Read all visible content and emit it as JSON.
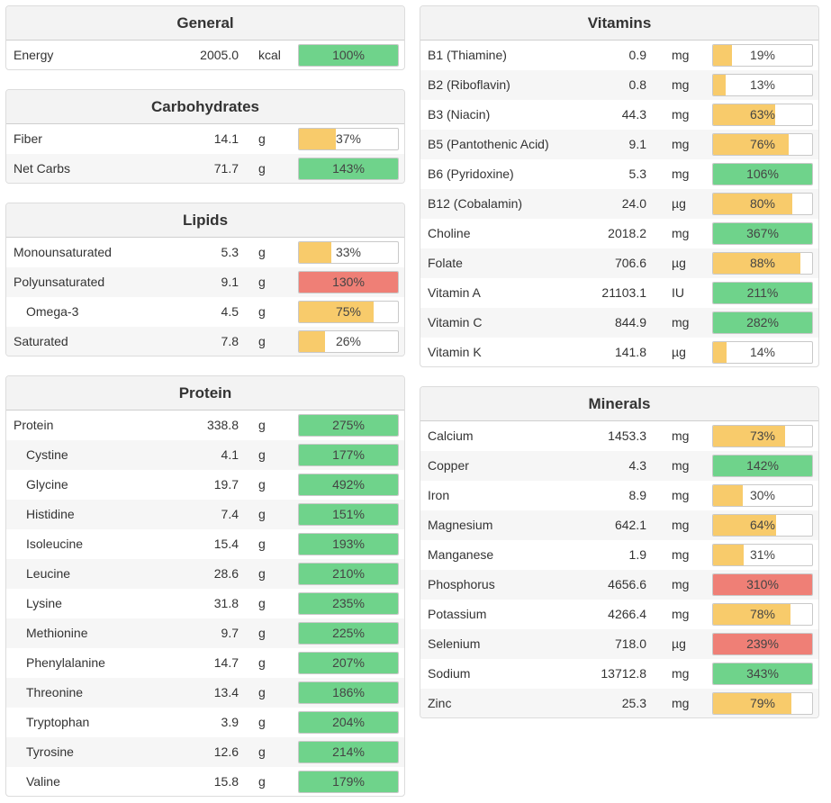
{
  "colors": {
    "green": "#6fd38b",
    "yellow": "#f8cb6b",
    "red": "#ef7f76"
  },
  "sections": {
    "general": {
      "title": "General",
      "rows": [
        {
          "name": "Energy",
          "amount": "2005.0",
          "unit": "kcal",
          "pct": "100%",
          "fill": 1.0,
          "color": "green"
        }
      ]
    },
    "carbohydrates": {
      "title": "Carbohydrates",
      "rows": [
        {
          "name": "Fiber",
          "amount": "14.1",
          "unit": "g",
          "pct": "37%",
          "fill": 0.37,
          "color": "yellow"
        },
        {
          "name": "Net Carbs",
          "amount": "71.7",
          "unit": "g",
          "pct": "143%",
          "fill": 1.0,
          "color": "green"
        }
      ]
    },
    "lipids": {
      "title": "Lipids",
      "rows": [
        {
          "name": "Monounsaturated",
          "amount": "5.3",
          "unit": "g",
          "pct": "33%",
          "fill": 0.33,
          "color": "yellow"
        },
        {
          "name": "Polyunsaturated",
          "amount": "9.1",
          "unit": "g",
          "pct": "130%",
          "fill": 1.0,
          "color": "red"
        },
        {
          "name": "Omega-3",
          "amount": "4.5",
          "unit": "g",
          "pct": "75%",
          "fill": 0.75,
          "color": "yellow",
          "indent": true
        },
        {
          "name": "Saturated",
          "amount": "7.8",
          "unit": "g",
          "pct": "26%",
          "fill": 0.26,
          "color": "yellow"
        }
      ]
    },
    "protein": {
      "title": "Protein",
      "rows": [
        {
          "name": "Protein",
          "amount": "338.8",
          "unit": "g",
          "pct": "275%",
          "fill": 1.0,
          "color": "green"
        },
        {
          "name": "Cystine",
          "amount": "4.1",
          "unit": "g",
          "pct": "177%",
          "fill": 1.0,
          "color": "green",
          "indent": true
        },
        {
          "name": "Glycine",
          "amount": "19.7",
          "unit": "g",
          "pct": "492%",
          "fill": 1.0,
          "color": "green",
          "indent": true
        },
        {
          "name": "Histidine",
          "amount": "7.4",
          "unit": "g",
          "pct": "151%",
          "fill": 1.0,
          "color": "green",
          "indent": true
        },
        {
          "name": "Isoleucine",
          "amount": "15.4",
          "unit": "g",
          "pct": "193%",
          "fill": 1.0,
          "color": "green",
          "indent": true
        },
        {
          "name": "Leucine",
          "amount": "28.6",
          "unit": "g",
          "pct": "210%",
          "fill": 1.0,
          "color": "green",
          "indent": true
        },
        {
          "name": "Lysine",
          "amount": "31.8",
          "unit": "g",
          "pct": "235%",
          "fill": 1.0,
          "color": "green",
          "indent": true
        },
        {
          "name": "Methionine",
          "amount": "9.7",
          "unit": "g",
          "pct": "225%",
          "fill": 1.0,
          "color": "green",
          "indent": true
        },
        {
          "name": "Phenylalanine",
          "amount": "14.7",
          "unit": "g",
          "pct": "207%",
          "fill": 1.0,
          "color": "green",
          "indent": true
        },
        {
          "name": "Threonine",
          "amount": "13.4",
          "unit": "g",
          "pct": "186%",
          "fill": 1.0,
          "color": "green",
          "indent": true
        },
        {
          "name": "Tryptophan",
          "amount": "3.9",
          "unit": "g",
          "pct": "204%",
          "fill": 1.0,
          "color": "green",
          "indent": true
        },
        {
          "name": "Tyrosine",
          "amount": "12.6",
          "unit": "g",
          "pct": "214%",
          "fill": 1.0,
          "color": "green",
          "indent": true
        },
        {
          "name": "Valine",
          "amount": "15.8",
          "unit": "g",
          "pct": "179%",
          "fill": 1.0,
          "color": "green",
          "indent": true
        }
      ]
    },
    "vitamins": {
      "title": "Vitamins",
      "rows": [
        {
          "name": "B1 (Thiamine)",
          "amount": "0.9",
          "unit": "mg",
          "pct": "19%",
          "fill": 0.19,
          "color": "yellow"
        },
        {
          "name": "B2 (Riboflavin)",
          "amount": "0.8",
          "unit": "mg",
          "pct": "13%",
          "fill": 0.13,
          "color": "yellow"
        },
        {
          "name": "B3 (Niacin)",
          "amount": "44.3",
          "unit": "mg",
          "pct": "63%",
          "fill": 0.63,
          "color": "yellow"
        },
        {
          "name": "B5 (Pantothenic Acid)",
          "amount": "9.1",
          "unit": "mg",
          "pct": "76%",
          "fill": 0.76,
          "color": "yellow"
        },
        {
          "name": "B6 (Pyridoxine)",
          "amount": "5.3",
          "unit": "mg",
          "pct": "106%",
          "fill": 1.0,
          "color": "green"
        },
        {
          "name": "B12 (Cobalamin)",
          "amount": "24.0",
          "unit": "µg",
          "pct": "80%",
          "fill": 0.8,
          "color": "yellow"
        },
        {
          "name": "Choline",
          "amount": "2018.2",
          "unit": "mg",
          "pct": "367%",
          "fill": 1.0,
          "color": "green"
        },
        {
          "name": "Folate",
          "amount": "706.6",
          "unit": "µg",
          "pct": "88%",
          "fill": 0.88,
          "color": "yellow"
        },
        {
          "name": "Vitamin A",
          "amount": "21103.1",
          "unit": "IU",
          "pct": "211%",
          "fill": 1.0,
          "color": "green"
        },
        {
          "name": "Vitamin C",
          "amount": "844.9",
          "unit": "mg",
          "pct": "282%",
          "fill": 1.0,
          "color": "green"
        },
        {
          "name": "Vitamin K",
          "amount": "141.8",
          "unit": "µg",
          "pct": "14%",
          "fill": 0.14,
          "color": "yellow"
        }
      ]
    },
    "minerals": {
      "title": "Minerals",
      "rows": [
        {
          "name": "Calcium",
          "amount": "1453.3",
          "unit": "mg",
          "pct": "73%",
          "fill": 0.73,
          "color": "yellow"
        },
        {
          "name": "Copper",
          "amount": "4.3",
          "unit": "mg",
          "pct": "142%",
          "fill": 1.0,
          "color": "green"
        },
        {
          "name": "Iron",
          "amount": "8.9",
          "unit": "mg",
          "pct": "30%",
          "fill": 0.3,
          "color": "yellow"
        },
        {
          "name": "Magnesium",
          "amount": "642.1",
          "unit": "mg",
          "pct": "64%",
          "fill": 0.64,
          "color": "yellow"
        },
        {
          "name": "Manganese",
          "amount": "1.9",
          "unit": "mg",
          "pct": "31%",
          "fill": 0.31,
          "color": "yellow"
        },
        {
          "name": "Phosphorus",
          "amount": "4656.6",
          "unit": "mg",
          "pct": "310%",
          "fill": 1.0,
          "color": "red"
        },
        {
          "name": "Potassium",
          "amount": "4266.4",
          "unit": "mg",
          "pct": "78%",
          "fill": 0.78,
          "color": "yellow"
        },
        {
          "name": "Selenium",
          "amount": "718.0",
          "unit": "µg",
          "pct": "239%",
          "fill": 1.0,
          "color": "red"
        },
        {
          "name": "Sodium",
          "amount": "13712.8",
          "unit": "mg",
          "pct": "343%",
          "fill": 1.0,
          "color": "green"
        },
        {
          "name": "Zinc",
          "amount": "25.3",
          "unit": "mg",
          "pct": "79%",
          "fill": 0.79,
          "color": "yellow"
        }
      ]
    }
  }
}
